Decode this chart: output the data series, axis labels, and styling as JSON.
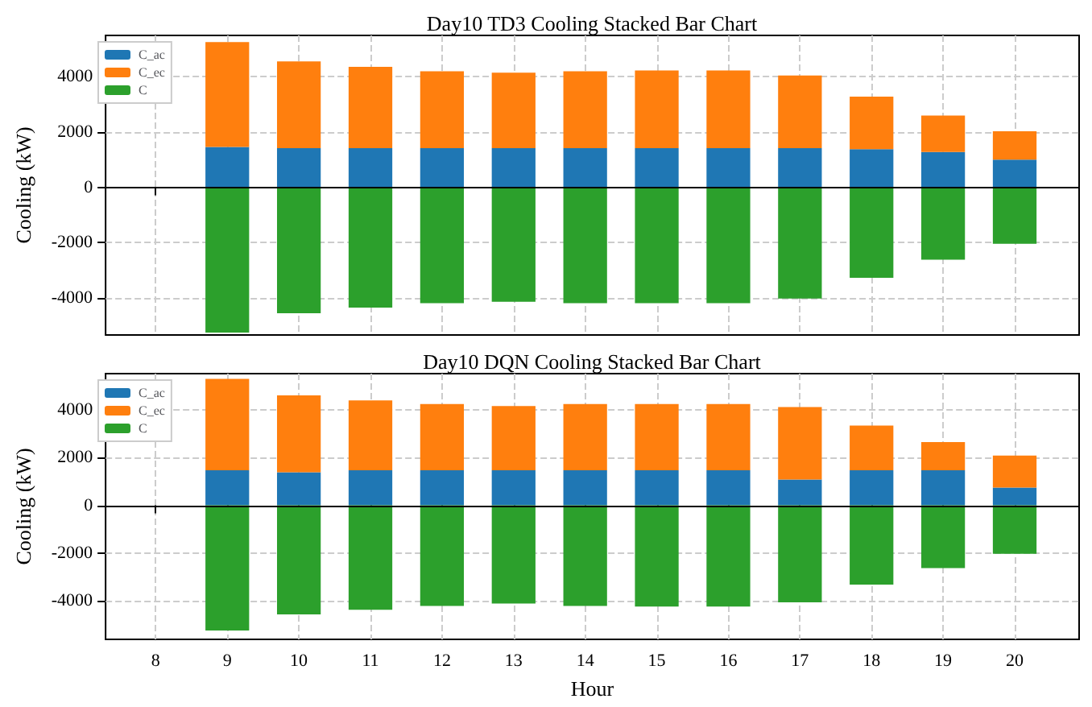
{
  "chart_data": [
    {
      "type": "bar",
      "title": "Day10 TD3 Cooling Stacked Bar Chart",
      "ylabel": "Cooling (kW)",
      "stacked": true,
      "x": [
        9,
        10,
        11,
        12,
        13,
        14,
        15,
        16,
        17,
        18,
        19,
        20
      ],
      "series": [
        {
          "name": "C_ac",
          "color": "#1f77b4",
          "values": [
            1460,
            1420,
            1420,
            1420,
            1420,
            1420,
            1420,
            1420,
            1420,
            1380,
            1280,
            1000
          ]
        },
        {
          "name": "C_ec",
          "color": "#ff7f0e",
          "values": [
            3800,
            3140,
            2940,
            2780,
            2730,
            2780,
            2810,
            2810,
            2630,
            1900,
            1320,
            1030
          ]
        },
        {
          "name": "C",
          "color": "#2ca02c",
          "values": [
            -5260,
            -4560,
            -4360,
            -4200,
            -4150,
            -4200,
            -4200,
            -4200,
            -4030,
            -3280,
            -2620,
            -2050
          ]
        }
      ],
      "xlim": [
        7.3,
        20.9
      ],
      "xticks": [
        8,
        9,
        10,
        11,
        12,
        13,
        14,
        15,
        16,
        17,
        18,
        19,
        20
      ],
      "ylim": [
        -5350,
        5500
      ],
      "yticks": [
        -4000,
        -2000,
        0,
        2000,
        4000
      ],
      "tick_labels": "y",
      "grid": true,
      "legend": "top left",
      "ref_lines": [
        {
          "axis": "y",
          "value": 0,
          "color": "#000000"
        }
      ]
    },
    {
      "type": "bar",
      "title": "Day10 DQN Cooling Stacked Bar Chart",
      "xlabel": "Hour",
      "ylabel": "Cooling (kW)",
      "stacked": true,
      "x": [
        9,
        10,
        11,
        12,
        13,
        14,
        15,
        16,
        17,
        18,
        19,
        20
      ],
      "series": [
        {
          "name": "C_ac",
          "color": "#1f77b4",
          "values": [
            1460,
            1380,
            1460,
            1460,
            1460,
            1460,
            1460,
            1460,
            1080,
            1460,
            1460,
            740
          ]
        },
        {
          "name": "C_ec",
          "color": "#ff7f0e",
          "values": [
            3820,
            3210,
            2920,
            2770,
            2690,
            2770,
            2770,
            2770,
            3020,
            1870,
            1180,
            1340
          ]
        },
        {
          "name": "C",
          "color": "#2ca02c",
          "values": [
            -5230,
            -4560,
            -4360,
            -4200,
            -4100,
            -4200,
            -4230,
            -4230,
            -4050,
            -3310,
            -2620,
            -2030
          ]
        }
      ],
      "xlim": [
        7.3,
        20.9
      ],
      "xticks": [
        8,
        9,
        10,
        11,
        12,
        13,
        14,
        15,
        16,
        17,
        18,
        19,
        20
      ],
      "ylim": [
        -5600,
        5500
      ],
      "yticks": [
        -4000,
        -2000,
        0,
        2000,
        4000
      ],
      "grid": true,
      "legend": "top left",
      "ref_lines": [
        {
          "axis": "y",
          "value": 0,
          "color": "#000000"
        }
      ]
    }
  ]
}
